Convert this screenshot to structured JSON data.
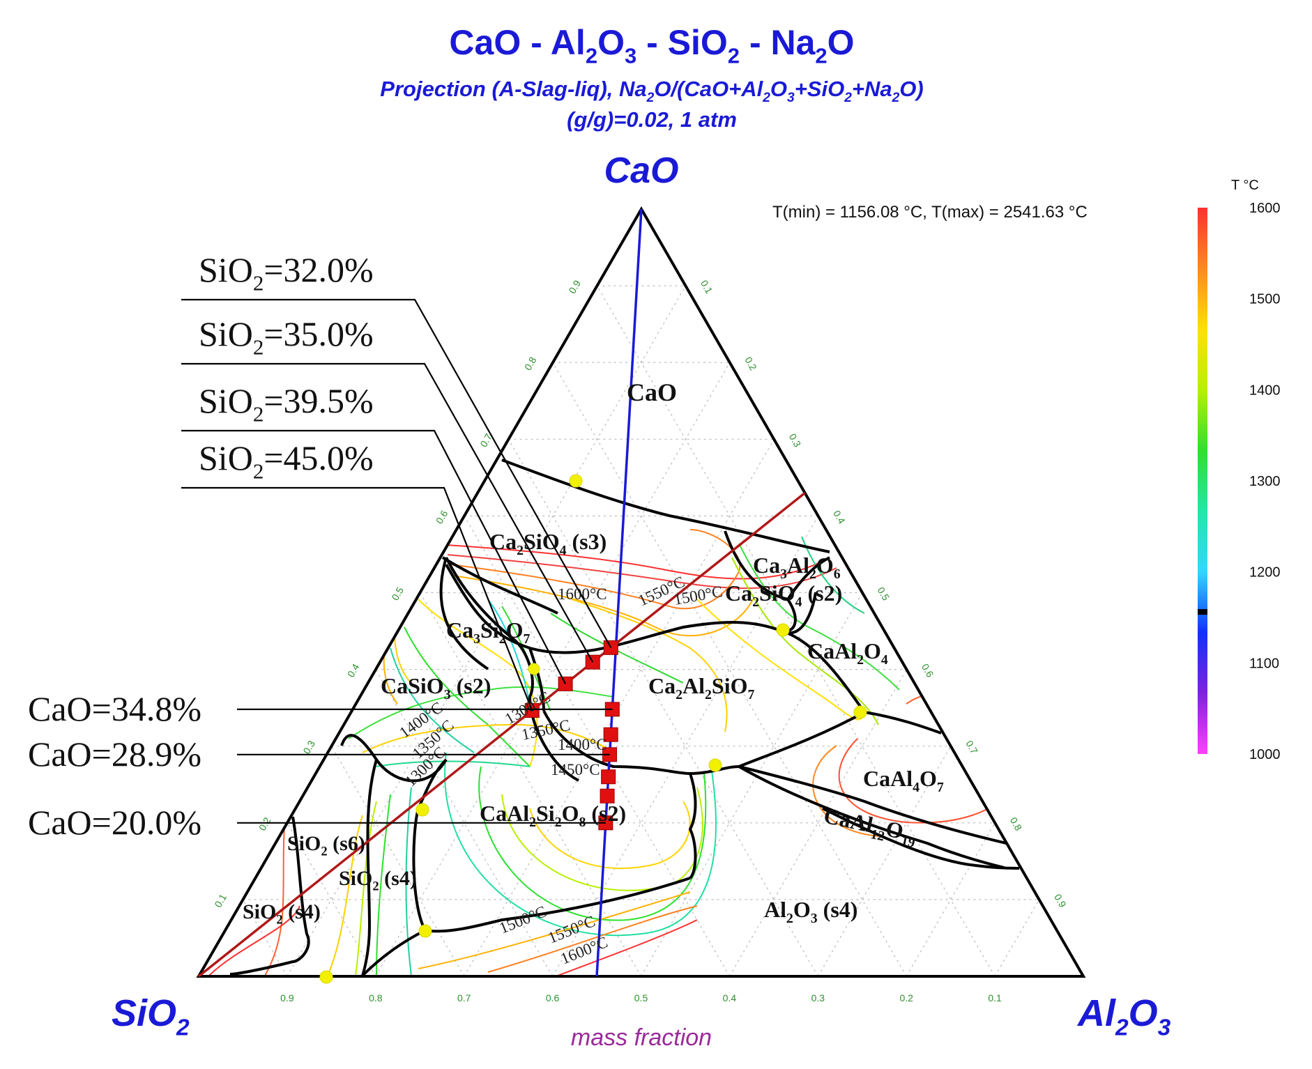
{
  "title": {
    "main": [
      {
        "t": "CaO - Al"
      },
      {
        "t": "2",
        "sub": true
      },
      {
        "t": "O"
      },
      {
        "t": "3",
        "sub": true
      },
      {
        "t": " - SiO"
      },
      {
        "t": "2",
        "sub": true
      },
      {
        "t": " - Na"
      },
      {
        "t": "2",
        "sub": true
      },
      {
        "t": "O"
      }
    ],
    "line2": [
      {
        "t": "Projection (A-Slag-liq), Na"
      },
      {
        "t": "2",
        "sub": true
      },
      {
        "t": "O/(CaO+Al"
      },
      {
        "t": "2",
        "sub": true
      },
      {
        "t": "O"
      },
      {
        "t": "3",
        "sub": true
      },
      {
        "t": "+SiO"
      },
      {
        "t": "2",
        "sub": true
      },
      {
        "t": "+Na"
      },
      {
        "t": "2",
        "sub": true
      },
      {
        "t": "O)"
      }
    ],
    "line3": "(g/g)=0.02, 1 atm"
  },
  "apex_labels": {
    "top": [
      {
        "t": "CaO"
      }
    ],
    "left": [
      {
        "t": "SiO"
      },
      {
        "t": "2",
        "sub": true
      }
    ],
    "right": [
      {
        "t": "Al"
      },
      {
        "t": "2",
        "sub": true
      },
      {
        "t": "O"
      },
      {
        "t": "3",
        "sub": true
      }
    ]
  },
  "axis_title": "mass fraction",
  "temperature_range_text": "T(min) = 1156.08 °C, T(max) = 2541.63 °C",
  "colorbar": {
    "title": "T °C",
    "ticks": [
      "1600",
      "1500",
      "1400",
      "1300",
      "1200",
      "1100",
      "1000"
    ],
    "range": [
      1000,
      1600
    ],
    "marker_value": 1156.08,
    "gradient": [
      "#ff3030",
      "#ff8a20",
      "#ffe000",
      "#b8f000",
      "#2ee02e",
      "#20e8a8",
      "#30d8ff",
      "#1030ff",
      "#8020e0",
      "#ff40ff"
    ]
  },
  "callouts_silica": [
    {
      "label": [
        {
          "t": "SiO"
        },
        {
          "t": "2",
          "sub": true
        },
        {
          "t": "=32.0%"
        }
      ]
    },
    {
      "label": [
        {
          "t": "SiO"
        },
        {
          "t": "2",
          "sub": true
        },
        {
          "t": "=35.0%"
        }
      ]
    },
    {
      "label": [
        {
          "t": "SiO"
        },
        {
          "t": "2",
          "sub": true
        },
        {
          "t": "=39.5%"
        }
      ]
    },
    {
      "label": [
        {
          "t": "SiO"
        },
        {
          "t": "2",
          "sub": true
        },
        {
          "t": "=45.0%"
        }
      ]
    }
  ],
  "callouts_lime": [
    {
      "label": [
        {
          "t": "CaO=34.8%"
        }
      ]
    },
    {
      "label": [
        {
          "t": "CaO=28.9%"
        }
      ]
    },
    {
      "label": [
        {
          "t": "CaO=20.0%"
        }
      ]
    }
  ],
  "phase_labels": [
    {
      "id": "cao",
      "text": [
        {
          "t": "CaO"
        }
      ]
    },
    {
      "id": "c2s",
      "text": [
        {
          "t": "Ca"
        },
        {
          "t": "2",
          "sub": true
        },
        {
          "t": "SiO"
        },
        {
          "t": "4",
          "sub": true
        },
        {
          "t": "  (s3)"
        }
      ]
    },
    {
      "id": "c3a",
      "text": [
        {
          "t": "Ca"
        },
        {
          "t": "3",
          "sub": true
        },
        {
          "t": "Al"
        },
        {
          "t": "2",
          "sub": true
        },
        {
          "t": "O"
        },
        {
          "t": "6",
          "sub": true
        }
      ]
    },
    {
      "id": "c2s2",
      "text": [
        {
          "t": "Ca"
        },
        {
          "t": "2",
          "sub": true
        },
        {
          "t": "SiO"
        },
        {
          "t": "4",
          "sub": true
        },
        {
          "t": " (s2)"
        }
      ]
    },
    {
      "id": "c3s2",
      "text": [
        {
          "t": "Ca"
        },
        {
          "t": "3",
          "sub": true
        },
        {
          "t": "Si"
        },
        {
          "t": "2",
          "sub": true
        },
        {
          "t": "O"
        },
        {
          "t": "7",
          "sub": true
        }
      ]
    },
    {
      "id": "ca",
      "text": [
        {
          "t": "CaAl"
        },
        {
          "t": "2",
          "sub": true
        },
        {
          "t": "O"
        },
        {
          "t": "4",
          "sub": true
        }
      ]
    },
    {
      "id": "cs",
      "text": [
        {
          "t": "CaSiO"
        },
        {
          "t": "3",
          "sub": true
        },
        {
          "t": "  (s2)"
        }
      ]
    },
    {
      "id": "c2as",
      "text": [
        {
          "t": "Ca"
        },
        {
          "t": "2",
          "sub": true
        },
        {
          "t": "Al"
        },
        {
          "t": "2",
          "sub": true
        },
        {
          "t": "SiO"
        },
        {
          "t": "7",
          "sub": true
        }
      ]
    },
    {
      "id": "ca2",
      "text": [
        {
          "t": "CaAl"
        },
        {
          "t": "4",
          "sub": true
        },
        {
          "t": "O"
        },
        {
          "t": "7",
          "sub": true
        }
      ]
    },
    {
      "id": "cas2",
      "text": [
        {
          "t": "CaAl"
        },
        {
          "t": "2",
          "sub": true
        },
        {
          "t": "Si"
        },
        {
          "t": "2",
          "sub": true
        },
        {
          "t": "O"
        },
        {
          "t": "8",
          "sub": true
        },
        {
          "t": "  (s2)"
        }
      ]
    },
    {
      "id": "ca6",
      "text": [
        {
          "t": "CaAl"
        },
        {
          "t": "12",
          "sub": true
        },
        {
          "t": "O"
        },
        {
          "t": "19",
          "sub": true
        }
      ]
    },
    {
      "id": "s6",
      "text": [
        {
          "t": "SiO"
        },
        {
          "t": "2",
          "sub": true
        },
        {
          "t": "  (s6)"
        }
      ]
    },
    {
      "id": "s4a",
      "text": [
        {
          "t": "SiO"
        },
        {
          "t": "2",
          "sub": true
        },
        {
          "t": "  (s4)"
        }
      ]
    },
    {
      "id": "s4b",
      "text": [
        {
          "t": "SiO"
        },
        {
          "t": "2",
          "sub": true
        },
        {
          "t": "  (s4)"
        }
      ]
    },
    {
      "id": "al",
      "text": [
        {
          "t": "Al"
        },
        {
          "t": "2",
          "sub": true
        },
        {
          "t": "O"
        },
        {
          "t": "3",
          "sub": true
        },
        {
          "t": "  (s4)"
        }
      ]
    }
  ],
  "isotherm_labels": [
    {
      "id": "t1600a",
      "text": "1600°C"
    },
    {
      "id": "t1550a",
      "text": "1550°C"
    },
    {
      "id": "t1500a",
      "text": "1500°C"
    },
    {
      "id": "t1400a",
      "text": "1400°C"
    },
    {
      "id": "t1350a",
      "text": "1350°C"
    },
    {
      "id": "t1300a",
      "text": "1300°C"
    },
    {
      "id": "t1300b",
      "text": "1300°C"
    },
    {
      "id": "t1350b",
      "text": "1350°C"
    },
    {
      "id": "t1400b",
      "text": "1400°C"
    },
    {
      "id": "t1450",
      "text": "1450°C"
    },
    {
      "id": "t1500b",
      "text": "1500°C"
    },
    {
      "id": "t1550b",
      "text": "1550°C"
    },
    {
      "id": "t1600b",
      "text": "1600°C"
    }
  ],
  "chart_data": {
    "type": "ternary",
    "components": [
      "CaO",
      "SiO2",
      "Al2O3"
    ],
    "tick_values": [
      "0.1",
      "0.2",
      "0.3",
      "0.4",
      "0.5",
      "0.6",
      "0.7",
      "0.8",
      "0.9"
    ],
    "section_lines": [
      {
        "name": "constant-composition line (blue)",
        "color": "#1a1ad6",
        "from": {
          "CaO": 1.0,
          "SiO2": 0.0,
          "Al2O3": 0.0
        },
        "to": {
          "CaO": 0.0,
          "SiO2": 0.55,
          "Al2O3": 0.45
        }
      },
      {
        "name": "constant-composition line (red)",
        "color": "#b01818",
        "from": {
          "CaO": 0.0,
          "SiO2": 1.0,
          "Al2O3": 0.0
        },
        "to": {
          "CaO": 0.63,
          "SiO2": 0.0,
          "Al2O3": 0.37
        }
      }
    ],
    "points_red_line": [
      {
        "CaO": 0.467,
        "SiO2": 0.32
      },
      {
        "CaO": 0.446,
        "SiO2": 0.35
      },
      {
        "CaO": 0.416,
        "SiO2": 0.395
      },
      {
        "CaO": 0.38,
        "SiO2": 0.45
      }
    ],
    "points_blue_line": [
      {
        "CaO": 0.348
      },
      {
        "CaO": 0.315
      },
      {
        "CaO": 0.289
      },
      {
        "CaO": 0.26
      },
      {
        "CaO": 0.235
      },
      {
        "CaO": 0.2
      }
    ]
  }
}
